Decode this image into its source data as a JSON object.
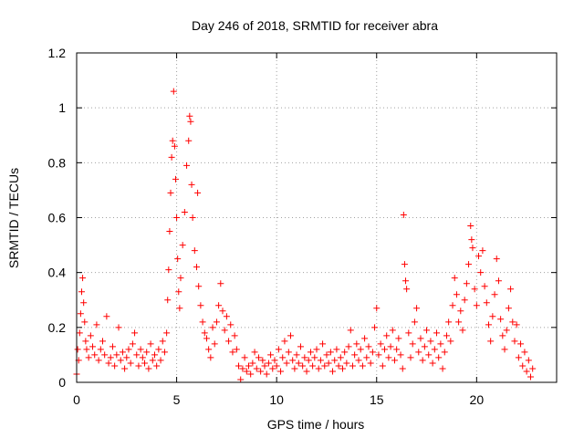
{
  "chart_data": {
    "type": "scatter",
    "title": "Day 246 of 2018, SRMTID for receiver abra",
    "xlabel": "GPS time / hours",
    "ylabel": "SRMTID / TECUs",
    "xlim": [
      0,
      24
    ],
    "ylim": [
      0,
      1.2
    ],
    "x_ticks": [
      0,
      5,
      10,
      15,
      20
    ],
    "y_ticks": [
      0,
      0.2,
      0.4,
      0.6,
      0.8,
      1,
      1.2
    ],
    "x_tick_labels": [
      "0",
      "5",
      "10",
      "15",
      "20"
    ],
    "y_tick_labels": [
      "0",
      "0.2",
      "0.4",
      "0.6",
      "0.8",
      "1",
      "1.2"
    ],
    "grid": true,
    "marker": "+",
    "series": [
      {
        "name": "SRMTID",
        "color": "#ff0000",
        "points": [
          [
            0.0,
            0.03
          ],
          [
            0.05,
            0.12
          ],
          [
            0.1,
            0.08
          ],
          [
            0.15,
            0.18
          ],
          [
            0.2,
            0.25
          ],
          [
            0.25,
            0.33
          ],
          [
            0.3,
            0.38
          ],
          [
            0.35,
            0.29
          ],
          [
            0.4,
            0.22
          ],
          [
            0.45,
            0.15
          ],
          [
            0.5,
            0.12
          ],
          [
            0.6,
            0.09
          ],
          [
            0.7,
            0.17
          ],
          [
            0.8,
            0.13
          ],
          [
            0.9,
            0.1
          ],
          [
            1.0,
            0.21
          ],
          [
            1.1,
            0.08
          ],
          [
            1.2,
            0.12
          ],
          [
            1.3,
            0.15
          ],
          [
            1.4,
            0.1
          ],
          [
            1.5,
            0.24
          ],
          [
            1.6,
            0.07
          ],
          [
            1.7,
            0.09
          ],
          [
            1.8,
            0.13
          ],
          [
            1.9,
            0.06
          ],
          [
            2.0,
            0.1
          ],
          [
            2.1,
            0.2
          ],
          [
            2.2,
            0.08
          ],
          [
            2.3,
            0.11
          ],
          [
            2.4,
            0.05
          ],
          [
            2.5,
            0.09
          ],
          [
            2.6,
            0.12
          ],
          [
            2.7,
            0.07
          ],
          [
            2.8,
            0.14
          ],
          [
            2.9,
            0.18
          ],
          [
            3.0,
            0.1
          ],
          [
            3.1,
            0.06
          ],
          [
            3.2,
            0.12
          ],
          [
            3.3,
            0.09
          ],
          [
            3.4,
            0.07
          ],
          [
            3.5,
            0.11
          ],
          [
            3.6,
            0.05
          ],
          [
            3.7,
            0.14
          ],
          [
            3.8,
            0.08
          ],
          [
            3.9,
            0.1
          ],
          [
            4.0,
            0.06
          ],
          [
            4.1,
            0.12
          ],
          [
            4.2,
            0.08
          ],
          [
            4.3,
            0.15
          ],
          [
            4.4,
            0.11
          ],
          [
            4.5,
            0.18
          ],
          [
            4.55,
            0.3
          ],
          [
            4.6,
            0.41
          ],
          [
            4.65,
            0.55
          ],
          [
            4.7,
            0.69
          ],
          [
            4.75,
            0.82
          ],
          [
            4.8,
            0.88
          ],
          [
            4.85,
            1.06
          ],
          [
            4.9,
            0.86
          ],
          [
            4.95,
            0.74
          ],
          [
            5.0,
            0.6
          ],
          [
            5.05,
            0.45
          ],
          [
            5.1,
            0.33
          ],
          [
            5.15,
            0.27
          ],
          [
            5.2,
            0.38
          ],
          [
            5.3,
            0.5
          ],
          [
            5.4,
            0.62
          ],
          [
            5.5,
            0.79
          ],
          [
            5.6,
            0.88
          ],
          [
            5.65,
            0.97
          ],
          [
            5.7,
            0.95
          ],
          [
            5.75,
            0.72
          ],
          [
            5.8,
            0.6
          ],
          [
            5.9,
            0.48
          ],
          [
            6.0,
            0.42
          ],
          [
            6.05,
            0.69
          ],
          [
            6.1,
            0.35
          ],
          [
            6.2,
            0.28
          ],
          [
            6.3,
            0.22
          ],
          [
            6.4,
            0.18
          ],
          [
            6.5,
            0.16
          ],
          [
            6.6,
            0.12
          ],
          [
            6.7,
            0.09
          ],
          [
            6.8,
            0.2
          ],
          [
            6.9,
            0.14
          ],
          [
            7.0,
            0.22
          ],
          [
            7.1,
            0.28
          ],
          [
            7.2,
            0.36
          ],
          [
            7.3,
            0.26
          ],
          [
            7.4,
            0.19
          ],
          [
            7.5,
            0.24
          ],
          [
            7.6,
            0.15
          ],
          [
            7.7,
            0.21
          ],
          [
            7.8,
            0.11
          ],
          [
            7.9,
            0.17
          ],
          [
            8.0,
            0.12
          ],
          [
            8.1,
            0.06
          ],
          [
            8.2,
            0.01
          ],
          [
            8.3,
            0.05
          ],
          [
            8.4,
            0.09
          ],
          [
            8.5,
            0.04
          ],
          [
            8.6,
            0.06
          ],
          [
            8.7,
            0.03
          ],
          [
            8.8,
            0.07
          ],
          [
            8.9,
            0.11
          ],
          [
            9.0,
            0.05
          ],
          [
            9.1,
            0.09
          ],
          [
            9.2,
            0.04
          ],
          [
            9.3,
            0.08
          ],
          [
            9.4,
            0.06
          ],
          [
            9.5,
            0.03
          ],
          [
            9.6,
            0.07
          ],
          [
            9.7,
            0.1
          ],
          [
            9.8,
            0.05
          ],
          [
            9.9,
            0.08
          ],
          [
            10.0,
            0.06
          ],
          [
            10.1,
            0.12
          ],
          [
            10.2,
            0.04
          ],
          [
            10.3,
            0.09
          ],
          [
            10.4,
            0.15
          ],
          [
            10.5,
            0.07
          ],
          [
            10.6,
            0.11
          ],
          [
            10.7,
            0.17
          ],
          [
            10.8,
            0.08
          ],
          [
            10.9,
            0.05
          ],
          [
            11.0,
            0.1
          ],
          [
            11.1,
            0.07
          ],
          [
            11.2,
            0.13
          ],
          [
            11.3,
            0.06
          ],
          [
            11.4,
            0.09
          ],
          [
            11.5,
            0.04
          ],
          [
            11.6,
            0.08
          ],
          [
            11.7,
            0.11
          ],
          [
            11.8,
            0.06
          ],
          [
            11.9,
            0.09
          ],
          [
            12.0,
            0.12
          ],
          [
            12.1,
            0.05
          ],
          [
            12.2,
            0.08
          ],
          [
            12.3,
            0.14
          ],
          [
            12.4,
            0.06
          ],
          [
            12.5,
            0.1
          ],
          [
            12.6,
            0.07
          ],
          [
            12.7,
            0.11
          ],
          [
            12.8,
            0.04
          ],
          [
            12.9,
            0.08
          ],
          [
            13.0,
            0.12
          ],
          [
            13.1,
            0.06
          ],
          [
            13.2,
            0.09
          ],
          [
            13.3,
            0.05
          ],
          [
            13.4,
            0.11
          ],
          [
            13.5,
            0.07
          ],
          [
            13.6,
            0.13
          ],
          [
            13.7,
            0.19
          ],
          [
            13.8,
            0.06
          ],
          [
            13.9,
            0.1
          ],
          [
            14.0,
            0.14
          ],
          [
            14.1,
            0.08
          ],
          [
            14.2,
            0.12
          ],
          [
            14.3,
            0.06
          ],
          [
            14.4,
            0.16
          ],
          [
            14.5,
            0.09
          ],
          [
            14.6,
            0.13
          ],
          [
            14.7,
            0.07
          ],
          [
            14.8,
            0.11
          ],
          [
            14.9,
            0.2
          ],
          [
            15.0,
            0.27
          ],
          [
            15.1,
            0.1
          ],
          [
            15.2,
            0.14
          ],
          [
            15.3,
            0.06
          ],
          [
            15.4,
            0.12
          ],
          [
            15.5,
            0.17
          ],
          [
            15.6,
            0.09
          ],
          [
            15.7,
            0.13
          ],
          [
            15.8,
            0.19
          ],
          [
            15.9,
            0.08
          ],
          [
            16.0,
            0.12
          ],
          [
            16.1,
            0.16
          ],
          [
            16.2,
            0.1
          ],
          [
            16.3,
            0.05
          ],
          [
            16.35,
            0.61
          ],
          [
            16.4,
            0.43
          ],
          [
            16.45,
            0.37
          ],
          [
            16.5,
            0.34
          ],
          [
            16.6,
            0.18
          ],
          [
            16.7,
            0.09
          ],
          [
            16.8,
            0.14
          ],
          [
            16.9,
            0.22
          ],
          [
            17.0,
            0.27
          ],
          [
            17.1,
            0.11
          ],
          [
            17.2,
            0.16
          ],
          [
            17.3,
            0.08
          ],
          [
            17.4,
            0.13
          ],
          [
            17.5,
            0.19
          ],
          [
            17.6,
            0.1
          ],
          [
            17.7,
            0.15
          ],
          [
            17.8,
            0.07
          ],
          [
            17.9,
            0.12
          ],
          [
            18.0,
            0.18
          ],
          [
            18.1,
            0.09
          ],
          [
            18.2,
            0.14
          ],
          [
            18.3,
            0.05
          ],
          [
            18.4,
            0.11
          ],
          [
            18.5,
            0.17
          ],
          [
            18.6,
            0.22
          ],
          [
            18.7,
            0.15
          ],
          [
            18.8,
            0.28
          ],
          [
            18.9,
            0.38
          ],
          [
            19.0,
            0.32
          ],
          [
            19.1,
            0.22
          ],
          [
            19.2,
            0.26
          ],
          [
            19.3,
            0.19
          ],
          [
            19.4,
            0.3
          ],
          [
            19.5,
            0.36
          ],
          [
            19.6,
            0.43
          ],
          [
            19.7,
            0.57
          ],
          [
            19.75,
            0.52
          ],
          [
            19.8,
            0.49
          ],
          [
            19.9,
            0.34
          ],
          [
            20.0,
            0.28
          ],
          [
            20.1,
            0.46
          ],
          [
            20.2,
            0.4
          ],
          [
            20.3,
            0.48
          ],
          [
            20.4,
            0.35
          ],
          [
            20.5,
            0.29
          ],
          [
            20.6,
            0.21
          ],
          [
            20.7,
            0.15
          ],
          [
            20.8,
            0.24
          ],
          [
            20.9,
            0.32
          ],
          [
            21.0,
            0.45
          ],
          [
            21.1,
            0.37
          ],
          [
            21.2,
            0.23
          ],
          [
            21.3,
            0.17
          ],
          [
            21.4,
            0.12
          ],
          [
            21.5,
            0.19
          ],
          [
            21.6,
            0.27
          ],
          [
            21.7,
            0.34
          ],
          [
            21.8,
            0.22
          ],
          [
            21.9,
            0.15
          ],
          [
            22.0,
            0.21
          ],
          [
            22.1,
            0.09
          ],
          [
            22.2,
            0.14
          ],
          [
            22.3,
            0.06
          ],
          [
            22.4,
            0.11
          ],
          [
            22.5,
            0.04
          ],
          [
            22.6,
            0.08
          ],
          [
            22.7,
            0.02
          ],
          [
            22.8,
            0.05
          ]
        ]
      }
    ]
  }
}
